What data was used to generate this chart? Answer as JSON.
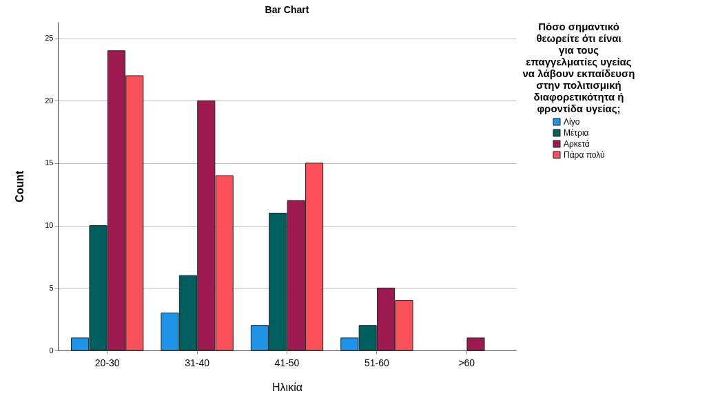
{
  "chart_data": {
    "type": "bar",
    "title": "Bar Chart",
    "xlabel": "Ηλικία",
    "ylabel": "Count",
    "legend_title": "Πόσο σημαντικό θεωρείτε ότι είναι για τους επαγγελματίες υγείας να λάβουν εκπαίδευση στην πολιτισμική διαφορετικότητα ή φροντίδα υγείας;",
    "categories": [
      "20-30",
      "31-40",
      "41-50",
      "51-60",
      ">60"
    ],
    "series": [
      {
        "name": "Λίγο",
        "color": "#1f93e8",
        "values": [
          1,
          3,
          2,
          1,
          null
        ]
      },
      {
        "name": "Μέτρια",
        "color": "#005e5e",
        "values": [
          10,
          6,
          11,
          2,
          null
        ]
      },
      {
        "name": "Αρκετά",
        "color": "#9c1a50",
        "values": [
          24,
          20,
          12,
          5,
          1
        ]
      },
      {
        "name": "Πάρα πολύ",
        "color": "#f9505a",
        "values": [
          22,
          14,
          15,
          4,
          null
        ]
      }
    ],
    "ylim": [
      0,
      26.3
    ],
    "yticks": [
      0,
      5,
      10,
      15,
      20,
      25
    ],
    "grid": "y",
    "legend": "top right"
  }
}
